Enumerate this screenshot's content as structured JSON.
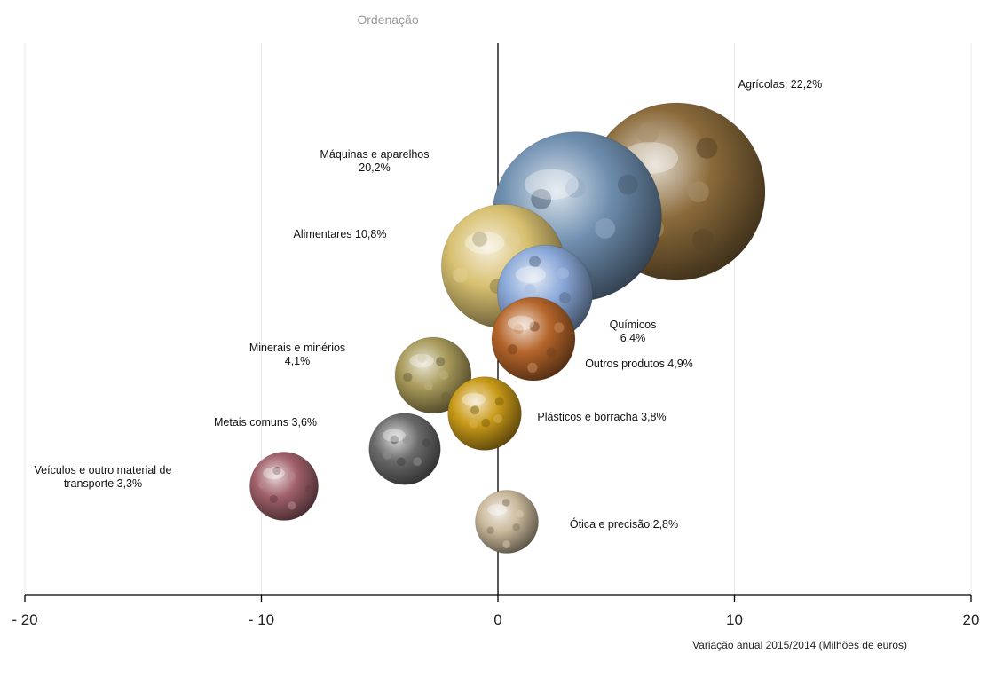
{
  "chart_data": {
    "type": "bubble",
    "ylabel": "Ordenação",
    "xlabel": "Variação anual 2015/2014  (Milhões de euros)",
    "xlim": [
      -20,
      20
    ],
    "xticks": [
      -20,
      -10,
      0,
      10,
      20
    ],
    "xtick_labels": [
      "- 20",
      "- 10",
      "0",
      "10",
      "20"
    ],
    "grid": true,
    "series": [
      {
        "label_lines": [
          "Agrícolas; 22,2%"
        ],
        "x": 7.2,
        "y": 10.0,
        "share": 22.2,
        "color": "#8a6a3a",
        "icon": "grains-photo"
      },
      {
        "label_lines": [
          "Máquinas e aparelhos",
          "20,2%"
        ],
        "x": 2.3,
        "y": 9.0,
        "share": 20.2,
        "color": "#6f8fb0",
        "icon": "laptop-photo"
      },
      {
        "label_lines": [
          "Alimentares 10,8%"
        ],
        "x": -0.2,
        "y": 8.0,
        "share": 10.8,
        "color": "#d8c070",
        "icon": "pasta-photo"
      },
      {
        "label_lines": [
          "Químicos",
          "6,4%"
        ],
        "x": 1.6,
        "y": 7.0,
        "share": 6.4,
        "color": "#8aa8d8",
        "icon": "lab-photo"
      },
      {
        "label_lines": [
          "Outros produtos  4,9%"
        ],
        "x": 1.4,
        "y": 6.0,
        "share": 4.9,
        "color": "#b5652a",
        "icon": "box-photo"
      },
      {
        "label_lines": [
          "Minerais e minérios",
          "4,1%"
        ],
        "x": -2.7,
        "y": 5.0,
        "share": 4.1,
        "color": "#a89a5a",
        "icon": "mineral-photo"
      },
      {
        "label_lines": [
          "Plásticos e borracha 3,8%"
        ],
        "x": -0.6,
        "y": 4.0,
        "share": 3.8,
        "color": "#c99a18",
        "icon": "plastic-photo"
      },
      {
        "label_lines": [
          "Metais comuns  3,6%"
        ],
        "x": -3.9,
        "y": 3.0,
        "share": 3.6,
        "color": "#6a6a6a",
        "icon": "gears-photo"
      },
      {
        "label_lines": [
          "Veículos  e outro material de",
          "transporte  3,3%"
        ],
        "x": -9.0,
        "y": 2.0,
        "share": 3.3,
        "color": "#a0606a",
        "icon": "cars-photo"
      },
      {
        "label_lines": [
          "Ótica e precisão 2,8%"
        ],
        "x": 0.3,
        "y": 1.0,
        "share": 2.8,
        "color": "#c9b89a",
        "icon": "watch-photo"
      }
    ]
  }
}
